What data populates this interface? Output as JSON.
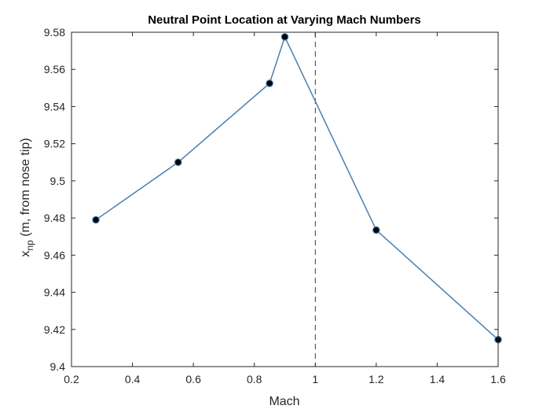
{
  "chart_data": {
    "type": "line",
    "title": "Neutral Point Location at Varying Mach Numbers",
    "xlabel": "Mach",
    "ylabel_main": "x",
    "ylabel_sub": "np",
    "ylabel_rest": " (m, from nose tip)",
    "xlim": [
      0.2,
      1.6
    ],
    "ylim": [
      9.4,
      9.58
    ],
    "xticks": [
      0.2,
      0.4,
      0.6,
      0.8,
      1,
      1.2,
      1.4,
      1.6
    ],
    "xtick_labels": [
      "0.2",
      "0.4",
      "0.6",
      "0.8",
      "1",
      "1.2",
      "1.4",
      "1.6"
    ],
    "yticks": [
      9.4,
      9.42,
      9.44,
      9.46,
      9.48,
      9.5,
      9.52,
      9.54,
      9.56,
      9.58
    ],
    "ytick_labels": [
      "9.4",
      "9.42",
      "9.44",
      "9.46",
      "9.48",
      "9.5",
      "9.52",
      "9.54",
      "9.56",
      "9.58"
    ],
    "grid": false,
    "reference_line": {
      "x": 1,
      "style": "dashed"
    },
    "series": [
      {
        "x": [
          0.28,
          0.55,
          0.85,
          0.9,
          1.2,
          1.6
        ],
        "y": [
          9.479,
          9.51,
          9.5525,
          9.5775,
          9.4735,
          9.4145
        ],
        "line_color": "#4a7eb0",
        "marker_fill": "#000000",
        "marker_edge": "#4a7eb0"
      }
    ]
  }
}
